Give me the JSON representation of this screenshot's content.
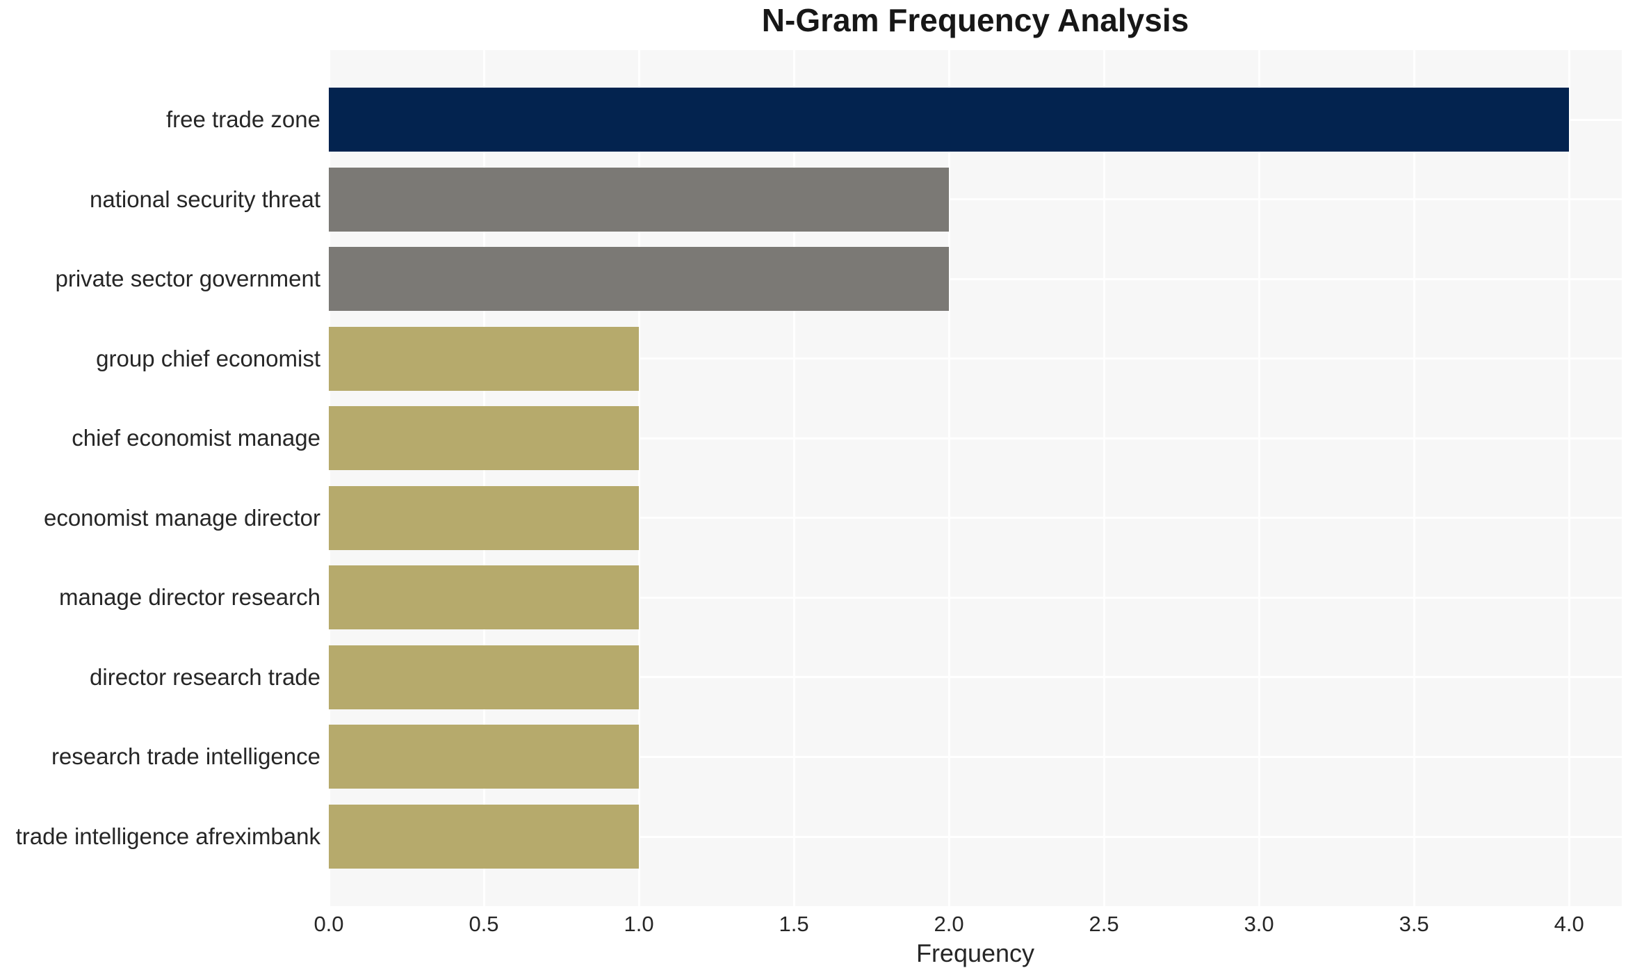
{
  "title": "N-Gram Frequency Analysis",
  "axes": {
    "x_label": "Frequency",
    "x_tick_labels": [
      "0.0",
      "0.5",
      "1.0",
      "1.5",
      "2.0",
      "2.5",
      "3.0",
      "3.5",
      "4.0"
    ]
  },
  "colors": {
    "navy": "#03234F",
    "gray": "#7B7975",
    "khaki": "#B6AA6C",
    "plot_background": "#F7F7F7",
    "gridline": "#FFFFFF",
    "text": "#262626"
  },
  "chart_data": {
    "type": "bar",
    "orientation": "horizontal",
    "title": "N-Gram Frequency Analysis",
    "xlabel": "Frequency",
    "ylabel": "",
    "xlim": [
      0,
      4.17
    ],
    "grid": true,
    "legend": false,
    "plot_background": "#F7F7F7",
    "gridline_color": "#FFFFFF",
    "categories": [
      "free trade zone",
      "national security threat",
      "private sector government",
      "group chief economist",
      "chief economist manage",
      "economist manage director",
      "manage director research",
      "director research trade",
      "research trade intelligence",
      "trade intelligence afreximbank"
    ],
    "values": [
      4,
      2,
      2,
      1,
      1,
      1,
      1,
      1,
      1,
      1
    ],
    "bar_colors": [
      "#03234F",
      "#7B7975",
      "#7B7975",
      "#B6AA6C",
      "#B6AA6C",
      "#B6AA6C",
      "#B6AA6C",
      "#B6AA6C",
      "#B6AA6C",
      "#B6AA6C"
    ],
    "xticks": [
      0,
      0.5,
      1.0,
      1.5,
      2.0,
      2.5,
      3.0,
      3.5,
      4.0
    ],
    "xtick_labels": [
      "0.0",
      "0.5",
      "1.0",
      "1.5",
      "2.0",
      "2.5",
      "3.0",
      "3.5",
      "4.0"
    ]
  }
}
